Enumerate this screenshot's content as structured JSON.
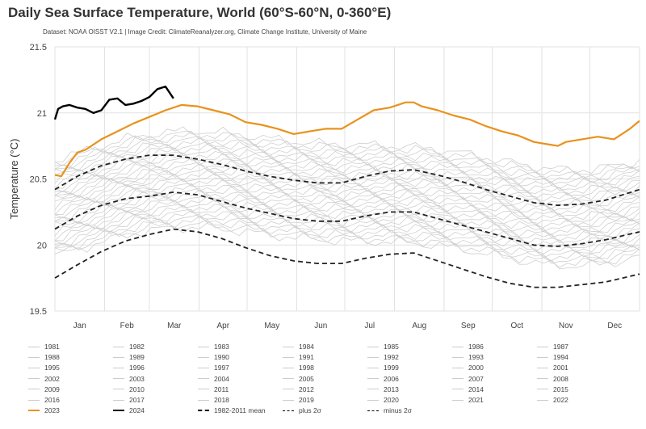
{
  "title": "Daily Sea Surface Temperature, World (60°S-60°N, 0-360°E)",
  "subtitle": "Dataset: NOAA OISST V2.1 | Image Credit: ClimateReanalyzer.org, Climate Change Institute, University of Maine",
  "chart_data": {
    "type": "line",
    "ylabel": "Temperature (°C)",
    "ylim": [
      19.5,
      21.5
    ],
    "yticks": [
      19.5,
      20,
      20.5,
      21,
      21.5
    ],
    "x_tick_labels": [
      "Jan",
      "Feb",
      "Mar",
      "Apr",
      "May",
      "Jun",
      "Jul",
      "Aug",
      "Sep",
      "Oct",
      "Nov",
      "Dec"
    ],
    "x_unit": "day of year",
    "xlim": [
      1,
      366
    ],
    "grid": true,
    "colors": {
      "highlight_2023": "#e8921d",
      "year_2024": "#000000",
      "other_years": "#cfcfcf",
      "stats": "#222222"
    },
    "series": [
      {
        "name": "2023",
        "style": "orange",
        "x": [
          1,
          5,
          10,
          15,
          20,
          30,
          40,
          50,
          60,
          70,
          80,
          90,
          100,
          110,
          120,
          130,
          140,
          150,
          160,
          170,
          180,
          190,
          200,
          210,
          215,
          220,
          225,
          230,
          240,
          250,
          260,
          270,
          280,
          290,
          300,
          310,
          315,
          320,
          330,
          340,
          350,
          360,
          366
        ],
        "y": [
          20.53,
          20.52,
          20.62,
          20.7,
          20.72,
          20.8,
          20.86,
          20.92,
          20.97,
          21.02,
          21.06,
          21.05,
          21.02,
          20.99,
          20.93,
          20.91,
          20.88,
          20.84,
          20.86,
          20.88,
          20.88,
          20.95,
          21.02,
          21.04,
          21.06,
          21.08,
          21.08,
          21.05,
          21.02,
          20.98,
          20.95,
          20.9,
          20.86,
          20.83,
          20.78,
          20.76,
          20.75,
          20.78,
          20.8,
          20.82,
          20.8,
          20.88,
          20.94
        ]
      },
      {
        "name": "2024",
        "style": "black",
        "x": [
          1,
          3,
          6,
          10,
          15,
          20,
          25,
          30,
          35,
          40,
          45,
          50,
          55,
          60,
          65,
          70,
          75
        ],
        "y": [
          20.95,
          21.03,
          21.05,
          21.06,
          21.04,
          21.03,
          21.0,
          21.02,
          21.1,
          21.11,
          21.06,
          21.07,
          21.09,
          21.12,
          21.18,
          21.2,
          21.11
        ]
      },
      {
        "name": "1982-2011 mean",
        "style": "dash",
        "x": [
          1,
          15,
          30,
          45,
          60,
          75,
          90,
          105,
          120,
          135,
          150,
          165,
          180,
          195,
          210,
          225,
          240,
          255,
          270,
          285,
          300,
          315,
          330,
          345,
          366
        ],
        "y": [
          20.12,
          20.22,
          20.3,
          20.35,
          20.37,
          20.4,
          20.38,
          20.33,
          20.28,
          20.24,
          20.2,
          20.18,
          20.18,
          20.22,
          20.25,
          20.25,
          20.2,
          20.15,
          20.1,
          20.05,
          20.0,
          19.99,
          20.01,
          20.04,
          20.1
        ]
      },
      {
        "name": "plus 2σ",
        "style": "dash",
        "x": [
          1,
          15,
          30,
          45,
          60,
          75,
          90,
          105,
          120,
          135,
          150,
          165,
          180,
          195,
          210,
          225,
          240,
          255,
          270,
          285,
          300,
          315,
          330,
          345,
          366
        ],
        "y": [
          20.42,
          20.52,
          20.6,
          20.65,
          20.68,
          20.68,
          20.65,
          20.61,
          20.56,
          20.52,
          20.49,
          20.47,
          20.47,
          20.52,
          20.56,
          20.57,
          20.53,
          20.48,
          20.42,
          20.37,
          20.32,
          20.3,
          20.31,
          20.34,
          20.42
        ]
      },
      {
        "name": "minus 2σ",
        "style": "dash",
        "x": [
          1,
          15,
          30,
          45,
          60,
          75,
          90,
          105,
          120,
          135,
          150,
          165,
          180,
          195,
          210,
          225,
          240,
          255,
          270,
          285,
          300,
          315,
          330,
          345,
          366
        ],
        "y": [
          19.75,
          19.85,
          19.95,
          20.03,
          20.08,
          20.12,
          20.1,
          20.05,
          19.98,
          19.92,
          19.88,
          19.86,
          19.86,
          19.9,
          19.93,
          19.94,
          19.88,
          19.82,
          19.76,
          19.71,
          19.68,
          19.68,
          19.7,
          19.72,
          19.78
        ]
      }
    ],
    "legend": [
      [
        "1981",
        "1982",
        "1983",
        "1984",
        "1985",
        "1986",
        "1987"
      ],
      [
        "1988",
        "1989",
        "1990",
        "1991",
        "1992",
        "1993",
        "1994"
      ],
      [
        "1995",
        "1996",
        "1997",
        "1998",
        "1999",
        "2000",
        "2001"
      ],
      [
        "2002",
        "2003",
        "2004",
        "2005",
        "2006",
        "2007",
        "2008"
      ],
      [
        "2009",
        "2010",
        "2011",
        "2012",
        "2013",
        "2014",
        "2015"
      ],
      [
        "2016",
        "2017",
        "2018",
        "2019",
        "2020",
        "2021",
        "2022"
      ],
      [
        "2023",
        "2024",
        "1982-2011 mean",
        "plus 2σ",
        "minus 2σ"
      ]
    ]
  }
}
